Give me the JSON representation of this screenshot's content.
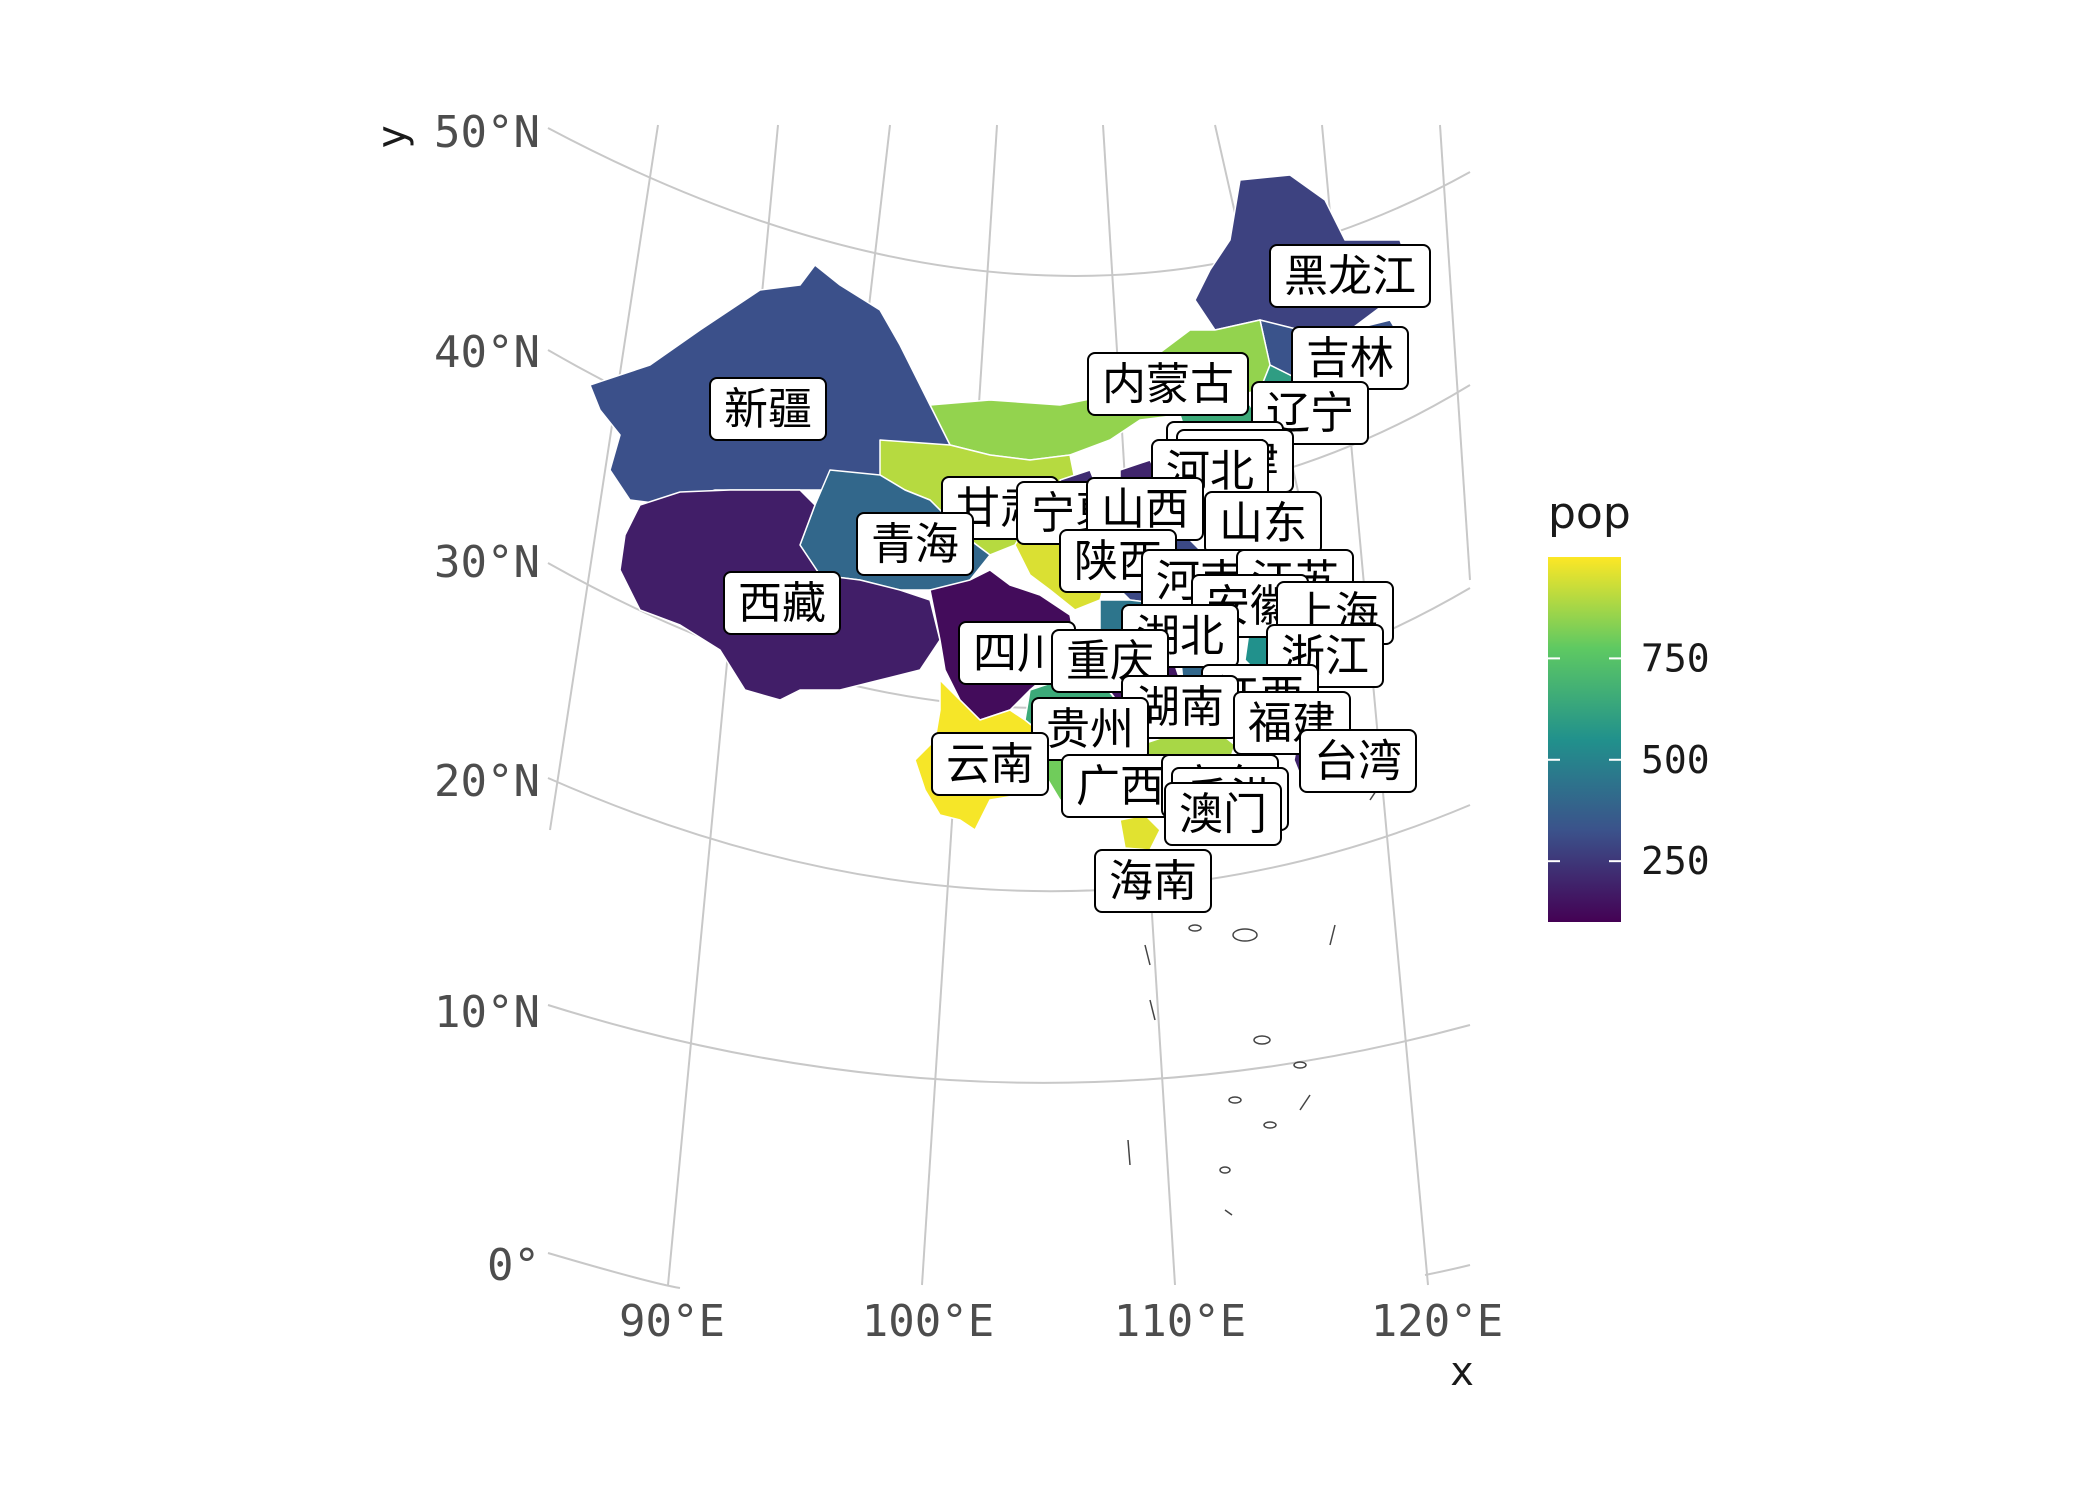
{
  "map": {
    "x_axis_title": "x",
    "y_axis_title": "y",
    "lat_labels": [
      "50°N",
      "40°N",
      "30°N",
      "20°N",
      "10°N",
      "0°"
    ],
    "lon_labels": [
      "90°E",
      "100°E",
      "110°E",
      "120°E"
    ]
  },
  "legend": {
    "title": "pop",
    "ticks": [
      {
        "label": "750",
        "value": 750
      },
      {
        "label": "500",
        "value": 500
      },
      {
        "label": "250",
        "value": 250
      }
    ],
    "range": [
      100,
      1000
    ],
    "colors": [
      "#440154",
      "#3b528b",
      "#21918c",
      "#5ec962",
      "#fde725"
    ]
  },
  "provinces": [
    {
      "name": "黑龙江",
      "pop": 280
    },
    {
      "name": "吉林",
      "pop": 330
    },
    {
      "name": "内蒙古",
      "pop": 850
    },
    {
      "name": "辽宁",
      "pop": 600
    },
    {
      "name": "北京",
      "pop": 500
    },
    {
      "name": "天津",
      "pop": 450
    },
    {
      "name": "河北",
      "pop": 650
    },
    {
      "name": "新疆",
      "pop": 320
    },
    {
      "name": "甘肃",
      "pop": 900
    },
    {
      "name": "宁夏",
      "pop": 220
    },
    {
      "name": "山西",
      "pop": 200
    },
    {
      "name": "山东",
      "pop": 750
    },
    {
      "name": "青海",
      "pop": 400
    },
    {
      "name": "陕西",
      "pop": 950
    },
    {
      "name": "河南",
      "pop": 300
    },
    {
      "name": "江苏",
      "pop": 600
    },
    {
      "name": "西藏",
      "pop": 180
    },
    {
      "name": "安徽",
      "pop": 350
    },
    {
      "name": "湖北",
      "pop": 450
    },
    {
      "name": "上海",
      "pop": 250
    },
    {
      "name": "四川",
      "pop": 130
    },
    {
      "name": "重庆",
      "pop": 420
    },
    {
      "name": "浙江",
      "pop": 550
    },
    {
      "name": "江西",
      "pop": 400
    },
    {
      "name": "湖南",
      "pop": 160
    },
    {
      "name": "福建",
      "pop": 700
    },
    {
      "name": "贵州",
      "pop": 650
    },
    {
      "name": "云南",
      "pop": 990
    },
    {
      "name": "台湾",
      "pop": 200
    },
    {
      "name": "广西",
      "pop": 800
    },
    {
      "name": "广东",
      "pop": 880
    },
    {
      "name": "香港",
      "pop": 600
    },
    {
      "name": "澳门",
      "pop": 920
    },
    {
      "name": "海南",
      "pop": 960
    }
  ]
}
